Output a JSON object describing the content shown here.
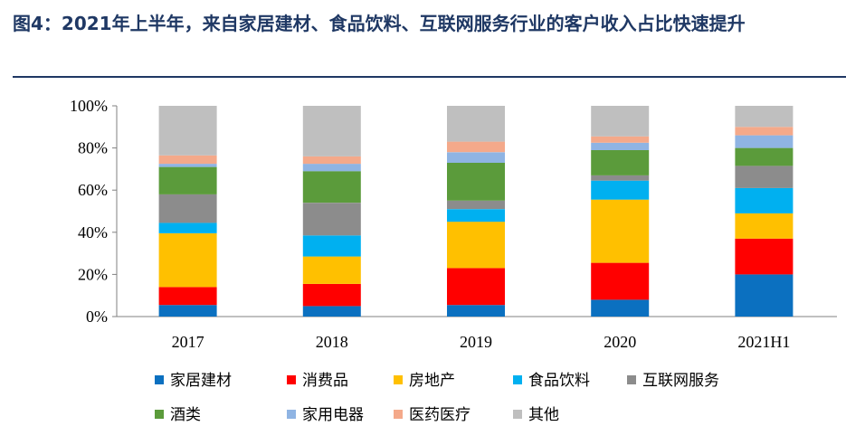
{
  "figure": {
    "title": "图4：2021年上半年，来自家居建材、食品饮料、互联网服务行业的客户收入占比快速提升"
  },
  "chart_data": {
    "type": "bar",
    "stacked": true,
    "title": "图4：2021年上半年，来自家居建材、食品饮料、互联网服务行业的客户收入占比快速提升",
    "categories": [
      "2017",
      "2018",
      "2019",
      "2020",
      "2021H1"
    ],
    "ylim": [
      0,
      100
    ],
    "yticks": [
      0,
      20,
      40,
      60,
      80,
      100
    ],
    "ytick_labels": [
      "0%",
      "20%",
      "40%",
      "60%",
      "80%",
      "100%"
    ],
    "xlabel": "",
    "ylabel": "",
    "legend_position": "bottom",
    "series": [
      {
        "name": "家居建材",
        "color": "#0b70c0",
        "values": [
          5.5,
          5.0,
          5.5,
          8.0,
          20.0
        ]
      },
      {
        "name": "消费品",
        "color": "#ff0000",
        "values": [
          8.5,
          10.5,
          17.5,
          17.5,
          17.0
        ]
      },
      {
        "name": "房地产",
        "color": "#ffc000",
        "values": [
          25.5,
          13.0,
          22.0,
          30.0,
          12.0
        ]
      },
      {
        "name": "食品饮料",
        "color": "#00b0f0",
        "values": [
          5.0,
          10.0,
          6.0,
          9.0,
          12.0
        ]
      },
      {
        "name": "互联网服务",
        "color": "#8c8c8c",
        "values": [
          13.5,
          15.5,
          4.0,
          2.5,
          10.5
        ]
      },
      {
        "name": "酒类",
        "color": "#5b9b3b",
        "values": [
          13.0,
          15.0,
          18.0,
          12.0,
          8.5
        ]
      },
      {
        "name": "家用电器",
        "color": "#8fb4e3",
        "values": [
          1.5,
          3.5,
          5.0,
          3.5,
          6.0
        ]
      },
      {
        "name": "医药医疗",
        "color": "#f4a98a",
        "values": [
          4.0,
          3.5,
          5.0,
          3.0,
          4.0
        ]
      },
      {
        "name": "其他",
        "color": "#bfbfbf",
        "values": [
          23.5,
          24.0,
          17.0,
          14.5,
          10.0
        ]
      }
    ]
  }
}
